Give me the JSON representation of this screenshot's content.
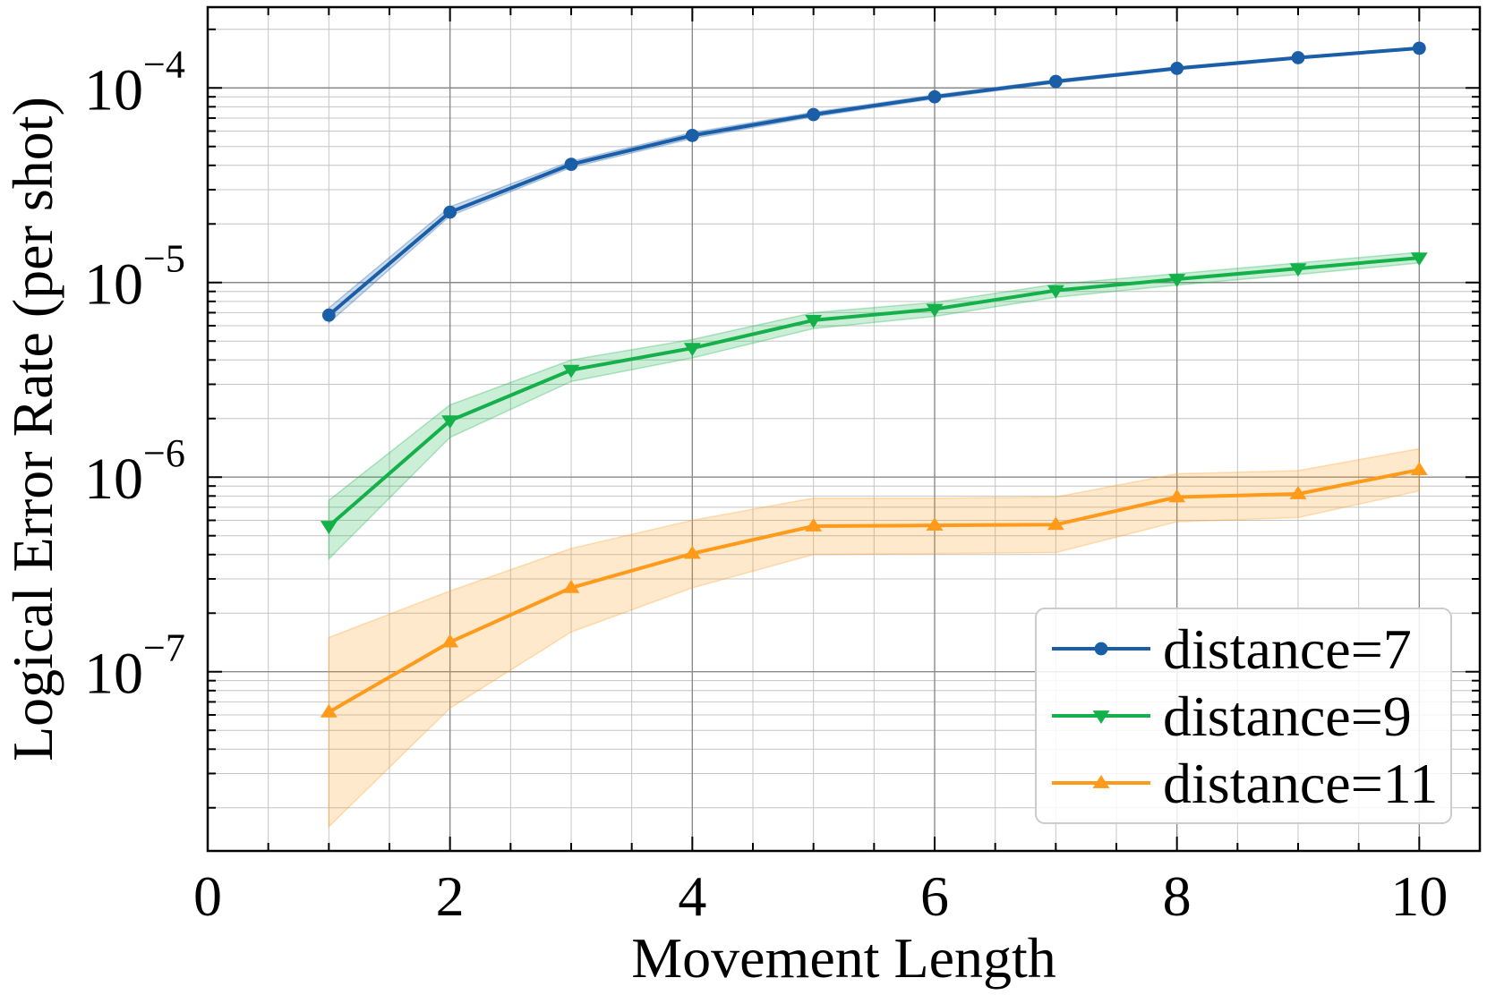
{
  "chart_data": {
    "type": "line",
    "xlabel": "Movement Length",
    "ylabel": "Logical Error Rate (per shot)",
    "xlim": [
      0,
      10.5
    ],
    "ylim": [
      1.2e-08,
      0.00026
    ],
    "yscale": "log",
    "xticks": [
      0,
      2,
      4,
      6,
      8,
      10
    ],
    "xtick_labels": [
      "0",
      "2",
      "4",
      "6",
      "8",
      "10"
    ],
    "yticks": [
      1e-07,
      1e-06,
      1e-05,
      0.0001
    ],
    "ytick_labels": [
      {
        "base": "10",
        "exp": "−7"
      },
      {
        "base": "10",
        "exp": "−6"
      },
      {
        "base": "10",
        "exp": "−5"
      },
      {
        "base": "10",
        "exp": "−4"
      }
    ],
    "grid": true,
    "legend_position": "lower-right",
    "series": [
      {
        "name": "distance=7",
        "color": "#1a5ea8",
        "marker": "circle",
        "x": [
          1,
          2,
          3,
          4,
          5,
          6,
          7,
          8,
          9,
          10
        ],
        "y": [
          6.8e-06,
          2.3e-05,
          4.05e-05,
          5.7e-05,
          7.3e-05,
          9e-05,
          0.000108,
          0.000126,
          0.000143,
          0.00016
        ],
        "lower": [
          6.2e-06,
          2.2e-05,
          3.9e-05,
          5.5e-05,
          7.1e-05,
          8.8e-05,
          0.000106,
          0.000124,
          0.000141,
          0.000158
        ],
        "upper": [
          7.4e-06,
          2.45e-05,
          4.2e-05,
          5.9e-05,
          7.5e-05,
          9.2e-05,
          0.00011,
          0.000128,
          0.000145,
          0.000162
        ]
      },
      {
        "name": "distance=9",
        "color": "#14b04a",
        "marker": "triangle-down",
        "x": [
          1,
          2,
          3,
          4,
          5,
          6,
          7,
          8,
          9,
          10
        ],
        "y": [
          5.6e-07,
          1.95e-06,
          3.55e-06,
          4.6e-06,
          6.4e-06,
          7.3e-06,
          9.1e-06,
          1.04e-05,
          1.18e-05,
          1.34e-05
        ],
        "lower": [
          3.8e-07,
          1.6e-06,
          3.1e-06,
          4.1e-06,
          5.8e-06,
          6.7e-06,
          8.4e-06,
          9.7e-06,
          1.1e-05,
          1.26e-05
        ],
        "upper": [
          7.6e-07,
          2.35e-06,
          4e-06,
          5.1e-06,
          7e-06,
          7.9e-06,
          9.8e-06,
          1.11e-05,
          1.26e-05,
          1.43e-05
        ]
      },
      {
        "name": "distance=11",
        "color": "#ff9a1a",
        "marker": "triangle-up",
        "x": [
          1,
          2,
          3,
          4,
          5,
          6,
          7,
          8,
          9,
          10
        ],
        "y": [
          6.2e-08,
          1.42e-07,
          2.7e-07,
          4.05e-07,
          5.6e-07,
          5.65e-07,
          5.7e-07,
          7.9e-07,
          8.2e-07,
          1.09e-06
        ],
        "lower": [
          1.6e-08,
          6.5e-08,
          1.6e-07,
          2.7e-07,
          4e-07,
          4.05e-07,
          4.1e-07,
          5.9e-07,
          6.2e-07,
          8.5e-07
        ],
        "upper": [
          1.5e-07,
          2.6e-07,
          4.3e-07,
          6e-07,
          7.8e-07,
          7.8e-07,
          7.9e-07,
          1.04e-06,
          1.08e-06,
          1.4e-06
        ]
      }
    ]
  }
}
